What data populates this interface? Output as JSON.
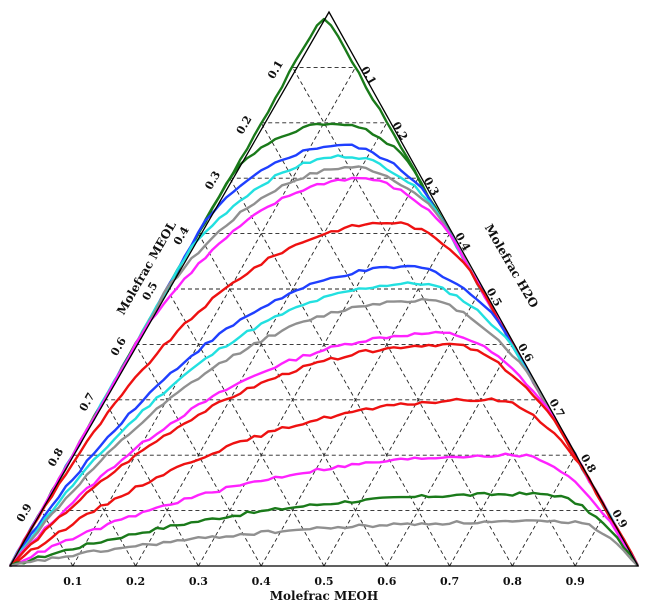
{
  "chart_data": {
    "type": "ternary-line",
    "axes": {
      "bottom": {
        "label": "Molefrac MEOH",
        "ticks": [
          "0.1",
          "0.2",
          "0.3",
          "0.4",
          "0.5",
          "0.6",
          "0.7",
          "0.8",
          "0.9"
        ]
      },
      "left": {
        "label": "Molefrac MEOL",
        "ticks": [
          "0.1",
          "0.2",
          "0.3",
          "0.4",
          "0.5",
          "0.6",
          "0.7",
          "0.8",
          "0.9"
        ]
      },
      "right": {
        "label": "Molefrac H2O",
        "ticks": [
          "0.1",
          "0.2",
          "0.3",
          "0.4",
          "0.5",
          "0.6",
          "0.7",
          "0.8",
          "0.9"
        ]
      },
      "range": [
        0,
        1
      ],
      "grid": true
    },
    "curves": [
      {
        "color": "#1a7a1a",
        "apex": [
          0.5,
          0.985
        ],
        "steep": 1.0
      },
      {
        "color": "#1a7a1a",
        "apex": [
          0.52,
          0.8
        ],
        "steep": 1.2
      },
      {
        "color": "#1f3fff",
        "apex": [
          0.53,
          0.76
        ],
        "steep": 1.2
      },
      {
        "color": "#22e0e0",
        "apex": [
          0.54,
          0.74
        ],
        "steep": 1.2
      },
      {
        "color": "#909090",
        "apex": [
          0.55,
          0.72
        ],
        "steep": 1.2
      },
      {
        "color": "#ff22ff",
        "apex": [
          0.56,
          0.7
        ],
        "steep": 1.2
      },
      {
        "color": "#ee1111",
        "apex": [
          0.61,
          0.62
        ],
        "steep": 1.3
      },
      {
        "color": "#1f3fff",
        "apex": [
          0.64,
          0.54
        ],
        "steep": 1.4
      },
      {
        "color": "#22e0e0",
        "apex": [
          0.65,
          0.51
        ],
        "steep": 1.4
      },
      {
        "color": "#909090",
        "apex": [
          0.66,
          0.48
        ],
        "steep": 1.4
      },
      {
        "color": "#ff22ff",
        "apex": [
          0.69,
          0.42
        ],
        "steep": 1.5
      },
      {
        "color": "#ee1111",
        "apex": [
          0.7,
          0.4
        ],
        "steep": 1.5
      },
      {
        "color": "#ee1111",
        "apex": [
          0.77,
          0.3
        ],
        "steep": 1.7
      },
      {
        "color": "#ff22ff",
        "apex": [
          0.81,
          0.2
        ],
        "steep": 1.9
      },
      {
        "color": "#1a7a1a",
        "apex": [
          0.85,
          0.13
        ],
        "steep": 2.1
      },
      {
        "color": "#909090",
        "apex": [
          0.89,
          0.08
        ],
        "steep": 2.4
      }
    ]
  }
}
